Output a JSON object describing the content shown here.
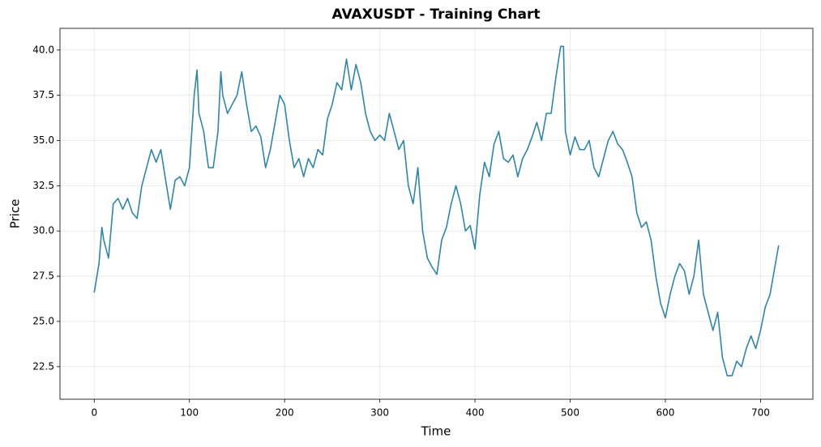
{
  "chart_data": {
    "type": "line",
    "title": "AVAXUSDT - Training Chart",
    "x_label": "Time",
    "y_label": "Price",
    "x": [
      0,
      5,
      8,
      10,
      15,
      20,
      25,
      30,
      35,
      40,
      45,
      50,
      55,
      60,
      65,
      70,
      75,
      80,
      85,
      90,
      95,
      100,
      105,
      108,
      110,
      115,
      120,
      125,
      130,
      133,
      135,
      140,
      145,
      150,
      155,
      160,
      165,
      170,
      175,
      180,
      185,
      190,
      195,
      200,
      205,
      210,
      215,
      220,
      225,
      230,
      235,
      240,
      245,
      250,
      255,
      260,
      265,
      270,
      275,
      280,
      285,
      290,
      295,
      300,
      305,
      310,
      315,
      320,
      325,
      330,
      335,
      340,
      345,
      350,
      355,
      360,
      365,
      370,
      375,
      380,
      385,
      390,
      395,
      400,
      405,
      410,
      415,
      420,
      425,
      430,
      435,
      440,
      445,
      450,
      455,
      460,
      465,
      470,
      475,
      480,
      485,
      490,
      493,
      495,
      500,
      505,
      510,
      515,
      520,
      525,
      530,
      535,
      540,
      545,
      550,
      555,
      560,
      565,
      570,
      575,
      580,
      585,
      590,
      595,
      600,
      605,
      610,
      615,
      620,
      625,
      630,
      635,
      640,
      645,
      650,
      655,
      660,
      665,
      670,
      675,
      680,
      685,
      690,
      695,
      700,
      705,
      710,
      715,
      719
    ],
    "series": [
      {
        "name": "AVAXUSDT",
        "color": "#2e86ab",
        "values": [
          26.6,
          28.2,
          30.2,
          29.5,
          28.5,
          31.5,
          31.8,
          31.2,
          31.8,
          31.0,
          30.7,
          32.5,
          33.5,
          34.5,
          33.8,
          34.5,
          32.8,
          31.2,
          32.8,
          33.0,
          32.5,
          33.5,
          37.5,
          38.9,
          36.5,
          35.5,
          33.5,
          33.5,
          35.5,
          38.8,
          37.5,
          36.5,
          37.0,
          37.5,
          38.8,
          37.0,
          35.5,
          35.8,
          35.2,
          33.5,
          34.5,
          36.0,
          37.5,
          37.0,
          35.0,
          33.5,
          34.0,
          33.0,
          34.0,
          33.5,
          34.5,
          34.2,
          36.2,
          37.0,
          38.2,
          37.8,
          39.5,
          37.8,
          39.2,
          38.2,
          36.5,
          35.5,
          35.0,
          35.3,
          35.0,
          36.5,
          35.5,
          34.5,
          35.0,
          32.5,
          31.5,
          33.5,
          30.0,
          28.5,
          28.0,
          27.6,
          29.5,
          30.2,
          31.5,
          32.5,
          31.5,
          30.0,
          30.3,
          29.0,
          32.0,
          33.8,
          33.0,
          34.8,
          35.5,
          34.0,
          33.8,
          34.2,
          33.0,
          34.0,
          34.5,
          35.2,
          36.0,
          35.0,
          36.5,
          36.5,
          38.5,
          40.2,
          40.2,
          35.5,
          34.2,
          35.2,
          34.5,
          34.5,
          35.0,
          33.5,
          33.0,
          34.0,
          35.0,
          35.5,
          34.8,
          34.5,
          33.8,
          33.0,
          31.0,
          30.2,
          30.5,
          29.5,
          27.5,
          26.0,
          25.2,
          26.5,
          27.5,
          28.2,
          27.8,
          26.5,
          27.5,
          29.5,
          26.5,
          25.5,
          24.5,
          25.5,
          23.0,
          22.0,
          22.0,
          22.8,
          22.5,
          23.5,
          24.2,
          23.5,
          24.5,
          25.8,
          26.5,
          28.0,
          29.2
        ]
      }
    ],
    "xlim": [
      -36,
      755
    ],
    "ylim": [
      20.7,
      41.2
    ],
    "xticks": [
      0,
      100,
      200,
      300,
      400,
      500,
      600,
      700
    ],
    "yticks": [
      22.5,
      {
        "value": 25,
        "label": "25.0"
      },
      27.5,
      {
        "value": 30,
        "label": "30.0"
      },
      32.5,
      {
        "value": 35,
        "label": "35.0"
      },
      37.5,
      {
        "value": 40,
        "label": "40.0"
      }
    ],
    "grid": true
  }
}
